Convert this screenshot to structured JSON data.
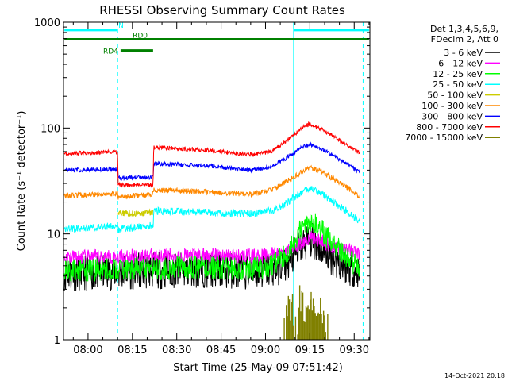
{
  "chart_data": {
    "type": "line",
    "title": "RHESSI Observing Summary Count Rates",
    "xlabel": "Start Time (25-May-09 07:51:42)",
    "ylabel": "Count Rate (s⁻¹ detector⁻¹)",
    "ylog": true,
    "ylim": [
      1,
      1000
    ],
    "xlim_min": [
      -8.3,
      95.3
    ],
    "yticks": [
      {
        "value": 1,
        "label": "1"
      },
      {
        "value": 10,
        "label": "10"
      },
      {
        "value": 100,
        "label": "100"
      },
      {
        "value": 1000,
        "label": "1000"
      }
    ],
    "xticks": [
      {
        "value": 0,
        "label": "08:00"
      },
      {
        "value": 15,
        "label": "08:15"
      },
      {
        "value": 30,
        "label": "08:30"
      },
      {
        "value": 45,
        "label": "08:45"
      },
      {
        "value": 60,
        "label": "09:00"
      },
      {
        "value": 75,
        "label": "09:15"
      },
      {
        "value": 90,
        "label": "09:30"
      }
    ],
    "legend_header": [
      "Det 1,3,4,5,6,9,",
      "FDecim 2, Att 0"
    ],
    "legend_position": "right",
    "series": [
      {
        "name": "3 - 6 keV",
        "color": "#000000",
        "x": [
          -8,
          10,
          22,
          40,
          55,
          62,
          67,
          72,
          75,
          78,
          83,
          88,
          92
        ],
        "y": [
          4.3,
          4.4,
          4.5,
          4.6,
          4.4,
          4.6,
          5.2,
          7.5,
          9,
          7.8,
          5.8,
          4.8,
          4.3
        ]
      },
      {
        "name": "6 - 12 keV",
        "color": "#ff00ff",
        "x": [
          -8,
          10,
          22,
          40,
          55,
          62,
          67,
          72,
          75,
          78,
          83,
          88,
          92
        ],
        "y": [
          6.0,
          6.1,
          6.2,
          6.3,
          6.2,
          6.3,
          6.8,
          8.2,
          9.3,
          8.8,
          7.6,
          7.0,
          6.6
        ]
      },
      {
        "name": "12 - 25 keV",
        "color": "#00ff00",
        "x": [
          -8,
          10,
          22,
          40,
          55,
          62,
          67,
          72,
          75,
          78,
          83,
          88,
          92
        ],
        "y": [
          4.5,
          4.6,
          4.7,
          4.8,
          4.6,
          5.0,
          6.5,
          11,
          13.5,
          11.5,
          8.0,
          5.8,
          4.8
        ]
      },
      {
        "name": "25 - 50 keV",
        "color": "#00ffff",
        "x": [
          -8,
          10,
          10.2,
          22,
          22.2,
          40,
          55,
          62,
          67,
          72,
          75,
          78,
          83,
          88,
          92
        ],
        "y": [
          11,
          12,
          11,
          12,
          16.5,
          16,
          15.5,
          16.5,
          19.5,
          24.5,
          27,
          25,
          20,
          16,
          13
        ]
      },
      {
        "name": "50 - 100 keV",
        "color": "#cccc00",
        "x": [
          10.2,
          15,
          22
        ],
        "y": [
          16,
          15.5,
          16
        ]
      },
      {
        "name": "100 - 300 keV",
        "color": "#ff8800",
        "x": [
          -8,
          10,
          10.2,
          22,
          22.2,
          40,
          55,
          62,
          67,
          72,
          75,
          78,
          83,
          88,
          92
        ],
        "y": [
          23,
          24,
          22,
          24,
          26,
          25,
          23.5,
          26,
          31,
          38,
          42,
          40,
          33,
          27,
          22
        ]
      },
      {
        "name": "300 - 800 keV",
        "color": "#0000ff",
        "x": [
          -8,
          10,
          10.2,
          22,
          22.2,
          40,
          55,
          62,
          67,
          72,
          75,
          78,
          83,
          88,
          92
        ],
        "y": [
          40,
          41,
          34,
          34,
          46,
          44,
          40,
          43,
          52,
          65,
          70,
          66,
          55,
          45,
          38
        ]
      },
      {
        "name": "800 - 7000 keV",
        "color": "#ff0000",
        "x": [
          -8,
          10,
          10.2,
          22,
          22.2,
          40,
          55,
          62,
          67,
          72,
          75,
          78,
          83,
          88,
          92
        ],
        "y": [
          57,
          60,
          29,
          29,
          66,
          62,
          56,
          60,
          75,
          98,
          110,
          100,
          83,
          68,
          58
        ]
      },
      {
        "name": "7000 - 15000 keV",
        "color": "#808000",
        "x": [
          65.8,
          67,
          68.5,
          70,
          71.5,
          73,
          74.5,
          76,
          77.5,
          79,
          80.5,
          81.8
        ],
        "y": [
          1,
          1.6,
          2.2,
          1.4,
          2.4,
          1.8,
          2.6,
          2.0,
          1.5,
          1.9,
          1.3,
          1
        ]
      }
    ],
    "annotations": {
      "flags": [
        {
          "label": "N",
          "color": "#00ffff",
          "x": [
            -8,
            10
          ],
          "y": 843
        },
        {
          "label": "",
          "color": "#00ffff",
          "x": [
            69.5,
            95
          ],
          "y": 843
        },
        {
          "label": "RD0",
          "color": "#008000",
          "x": [
            -8,
            95
          ],
          "y": 690
        },
        {
          "label": "RD4",
          "color": "#008000",
          "x": [
            11,
            22
          ],
          "y": 540
        }
      ],
      "vlines_solid": [
        69.5
      ],
      "vlines_dashed": [
        10,
        93
      ]
    },
    "footer_date": "14-Oct-2021 20:18"
  }
}
